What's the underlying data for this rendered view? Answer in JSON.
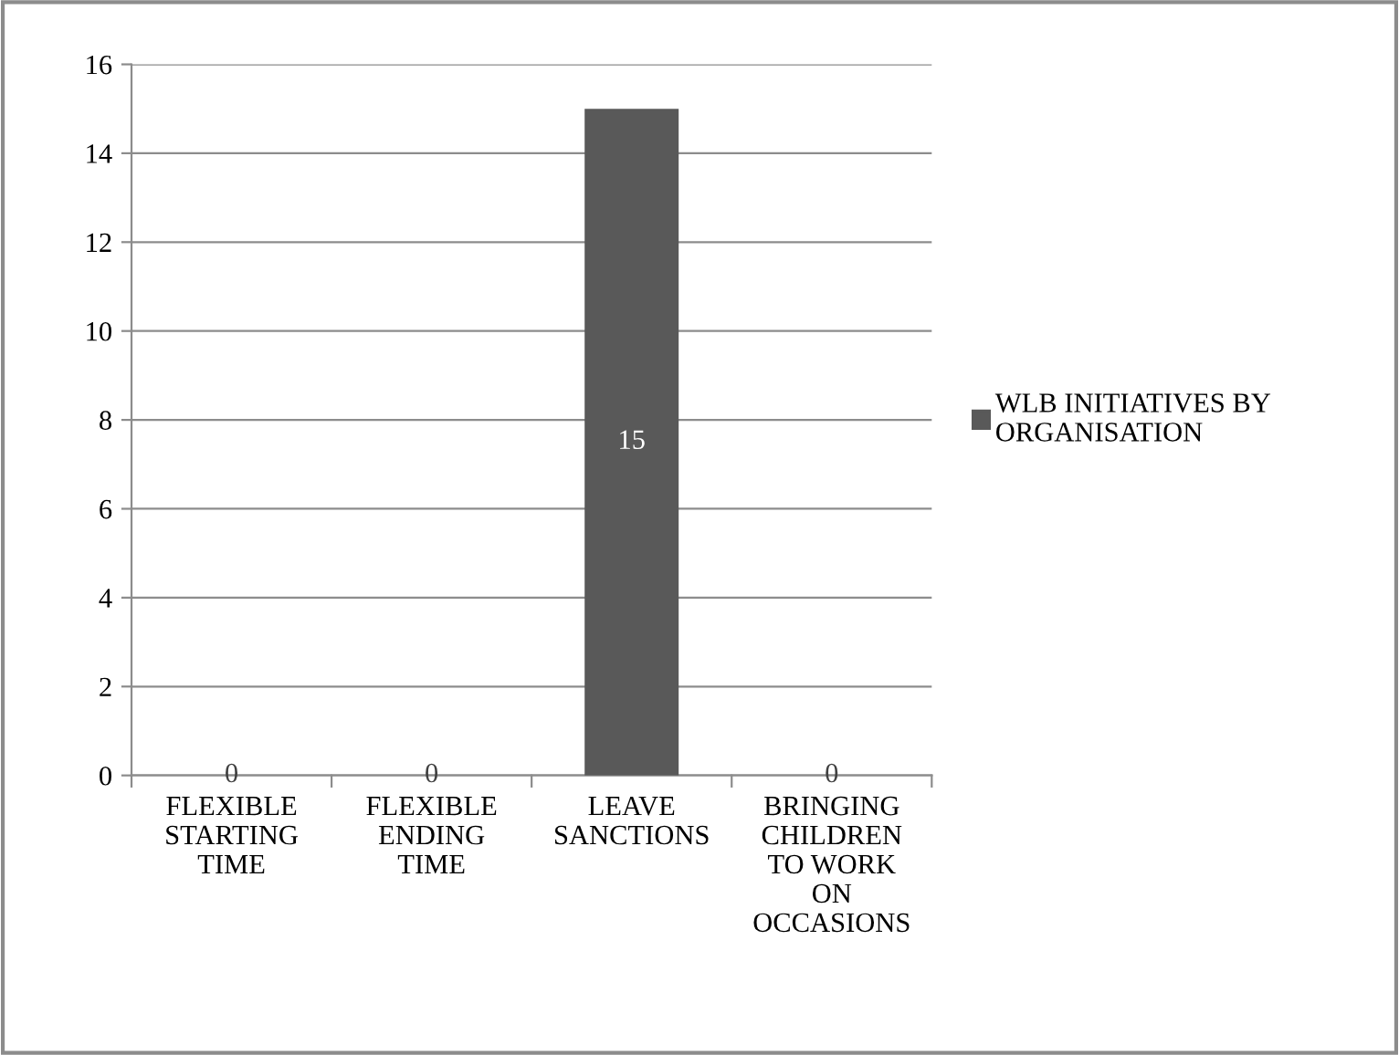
{
  "chart_data": {
    "type": "bar",
    "categories": [
      "FLEXIBLE STARTING TIME",
      "FLEXIBLE ENDING TIME",
      "LEAVE SANCTIONS",
      "BRINGING CHILDREN TO WORK ON OCCASIONS"
    ],
    "series": [
      {
        "name": "WLB INITIATIVES BY ORGANISATION",
        "color": "#595959",
        "values": [
          0,
          0,
          15,
          0
        ]
      }
    ],
    "ylim": [
      0,
      16
    ],
    "yticks": [
      0,
      2,
      4,
      6,
      8,
      10,
      12,
      14,
      16
    ],
    "grid": "y",
    "legend": "right",
    "data_labels": true
  }
}
